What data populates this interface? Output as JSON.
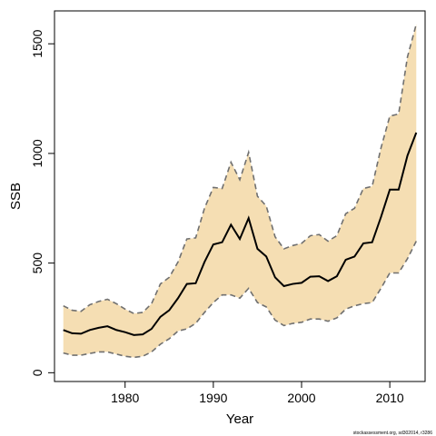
{
  "chart_data": {
    "type": "line",
    "title": "",
    "xlabel": "Year",
    "ylabel": "SSB",
    "xlim": [
      1972,
      2014
    ],
    "ylim": [
      -40,
      1650
    ],
    "x_ticks": [
      1980,
      1990,
      2000,
      2010
    ],
    "y_ticks": [
      0,
      500,
      1000,
      1500
    ],
    "grid": false,
    "band_color": "#f5deb3",
    "line_color": "#000000",
    "bound_color": "#707070",
    "x": [
      1973,
      1974,
      1975,
      1976,
      1977,
      1978,
      1979,
      1980,
      1981,
      1982,
      1983,
      1984,
      1985,
      1986,
      1987,
      1988,
      1989,
      1990,
      1991,
      1992,
      1993,
      1994,
      1995,
      1996,
      1997,
      1998,
      1999,
      2000,
      2001,
      2002,
      2003,
      2004,
      2005,
      2006,
      2007,
      2008,
      2009,
      2010,
      2011,
      2012,
      2013
    ],
    "series": [
      {
        "role": "estimate",
        "values": [
          195,
          180,
          178,
          195,
          205,
          212,
          195,
          185,
          172,
          175,
          200,
          255,
          285,
          340,
          405,
          408,
          505,
          585,
          595,
          675,
          610,
          705,
          565,
          530,
          435,
          395,
          405,
          410,
          438,
          440,
          418,
          440,
          515,
          530,
          590,
          595,
          710,
          835,
          835,
          990,
          1095
        ]
      },
      {
        "role": "lower",
        "values": [
          90,
          80,
          80,
          88,
          95,
          95,
          85,
          75,
          70,
          75,
          95,
          130,
          155,
          190,
          200,
          225,
          275,
          320,
          355,
          355,
          340,
          385,
          320,
          300,
          240,
          215,
          225,
          230,
          245,
          245,
          235,
          250,
          290,
          305,
          315,
          320,
          385,
          455,
          455,
          520,
          600
        ]
      },
      {
        "role": "upper",
        "values": [
          305,
          285,
          280,
          310,
          325,
          335,
          315,
          290,
          270,
          275,
          315,
          405,
          435,
          505,
          610,
          615,
          750,
          845,
          840,
          960,
          880,
          1005,
          805,
          760,
          620,
          565,
          580,
          590,
          625,
          630,
          600,
          625,
          725,
          750,
          840,
          850,
          1025,
          1170,
          1180,
          1440,
          1590
        ]
      }
    ]
  },
  "footer": {
    "note": "stockassessment.org, sd302014, r3286"
  }
}
